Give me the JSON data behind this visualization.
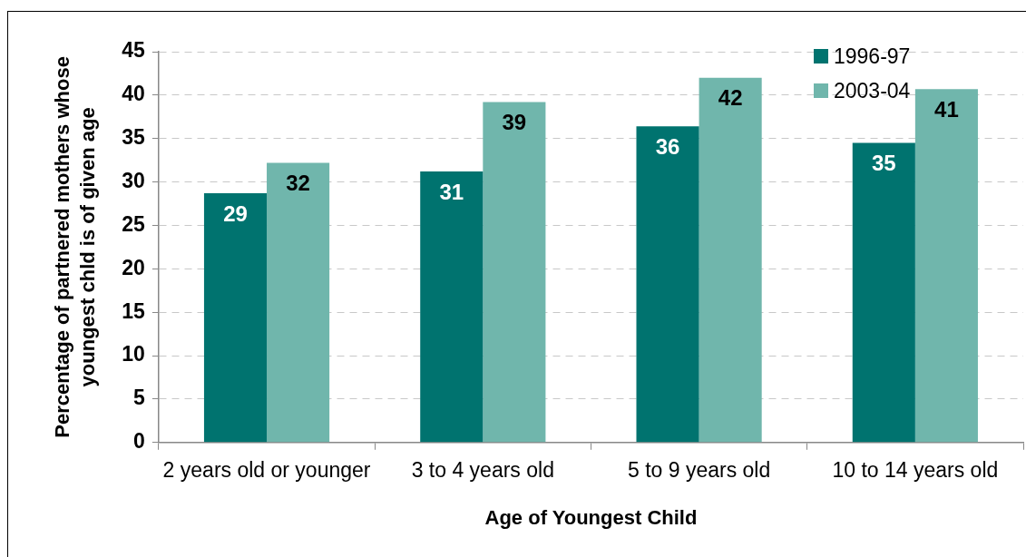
{
  "chart_data": {
    "type": "bar",
    "xlabel": "Age of Youngest Child",
    "ylabel": "Percentage of partnered mothers whose youngest chld is of given age",
    "categories": [
      "2 years old or younger",
      "3 to 4 years old",
      "5 to 9 years old",
      "10 to 14 years old"
    ],
    "series": [
      {
        "name": "1996-97",
        "color": "#00736f",
        "values": [
          28.7,
          31.2,
          36.4,
          34.5
        ],
        "value_labels": [
          "29",
          "31",
          "36",
          "35"
        ]
      },
      {
        "name": "2003-04",
        "color": "#70b6ac",
        "values": [
          32.2,
          39.2,
          42.0,
          40.7
        ],
        "value_labels": [
          "32",
          "39",
          "42",
          "41"
        ]
      }
    ],
    "ylim": [
      0,
      45
    ],
    "yticks": [
      0,
      5,
      10,
      15,
      20,
      25,
      30,
      35,
      40,
      45
    ],
    "grid": "y",
    "legend": "top right"
  }
}
